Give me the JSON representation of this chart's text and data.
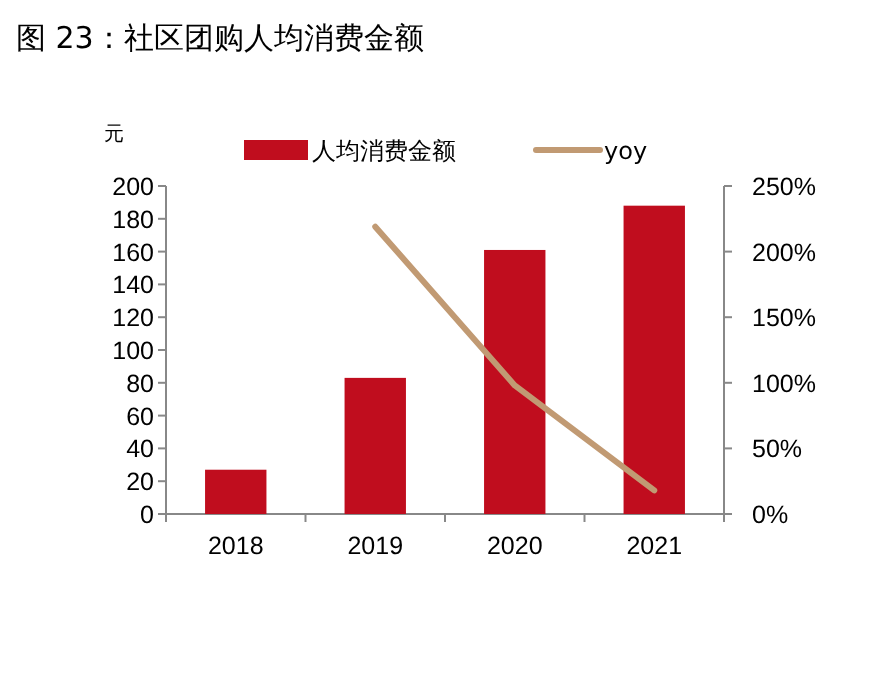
{
  "chart_data": {
    "type": "bar",
    "title": "图 23：社区团购人均消费金额",
    "ylabel": "元",
    "categories": [
      "2018",
      "2019",
      "2020",
      "2021"
    ],
    "series": [
      {
        "name": "人均消费金额",
        "color": "#c00d1e",
        "values": [
          27,
          83,
          161,
          188
        ]
      },
      {
        "name": "yoy",
        "type": "line",
        "axis": "y2",
        "color": "#c19a73",
        "values": [
          null,
          219,
          98,
          18
        ],
        "marker": "none"
      }
    ],
    "ylim": [
      0,
      200
    ],
    "yticks": [
      0,
      20,
      40,
      60,
      80,
      100,
      120,
      140,
      160,
      180,
      200
    ],
    "y2lim": [
      0,
      250
    ],
    "y2ticks": [
      {
        "value": 0,
        "label": "0%"
      },
      {
        "value": 50,
        "label": "50%"
      },
      {
        "value": 100,
        "label": "100%"
      },
      {
        "value": 150,
        "label": "150%"
      },
      {
        "value": 200,
        "label": "200%"
      },
      {
        "value": 250,
        "label": "250%"
      }
    ],
    "grid": false,
    "legend": "top"
  }
}
